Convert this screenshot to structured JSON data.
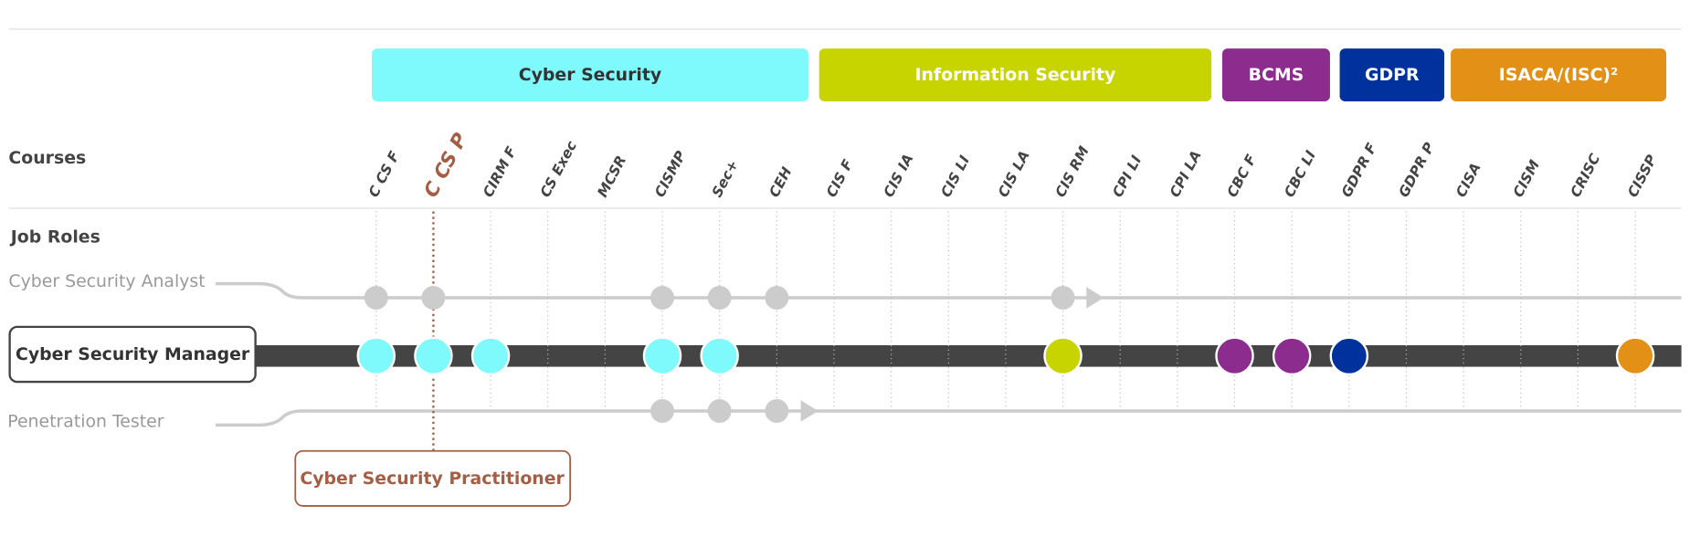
{
  "groups": [
    {
      "label": "Cyber Security",
      "color": "#7ef9fc"
    },
    {
      "label": "Information Security",
      "color": "#c8d400"
    },
    {
      "label": "BCMS",
      "color": "#8b2c8e"
    },
    {
      "label": "GDPR",
      "color": "#00319c"
    },
    {
      "label": "ISACA/(ISC)²",
      "color": "#e39116"
    }
  ],
  "courses_heading": "Courses",
  "courses": [
    "C CS F",
    "C CS P",
    "CIRM F",
    "CS Exec",
    "MCSR",
    "CISMP",
    "Sec+",
    "CEH",
    "CIS F",
    "CIS IA",
    "CIS LI",
    "CIS LA",
    "CIS RM",
    "CPI LI",
    "CPI LA",
    "CBC F",
    "CBC LI",
    "GDPR F",
    "GDPR P",
    "CISA",
    "CISM",
    "CRISC",
    "CISSP"
  ],
  "job_roles_heading": "Job Roles",
  "roles": [
    "Cyber Security Analyst",
    "Cyber Security Manager",
    "Penetration Tester"
  ],
  "highlight_label": "Cyber Security Practitioner"
}
